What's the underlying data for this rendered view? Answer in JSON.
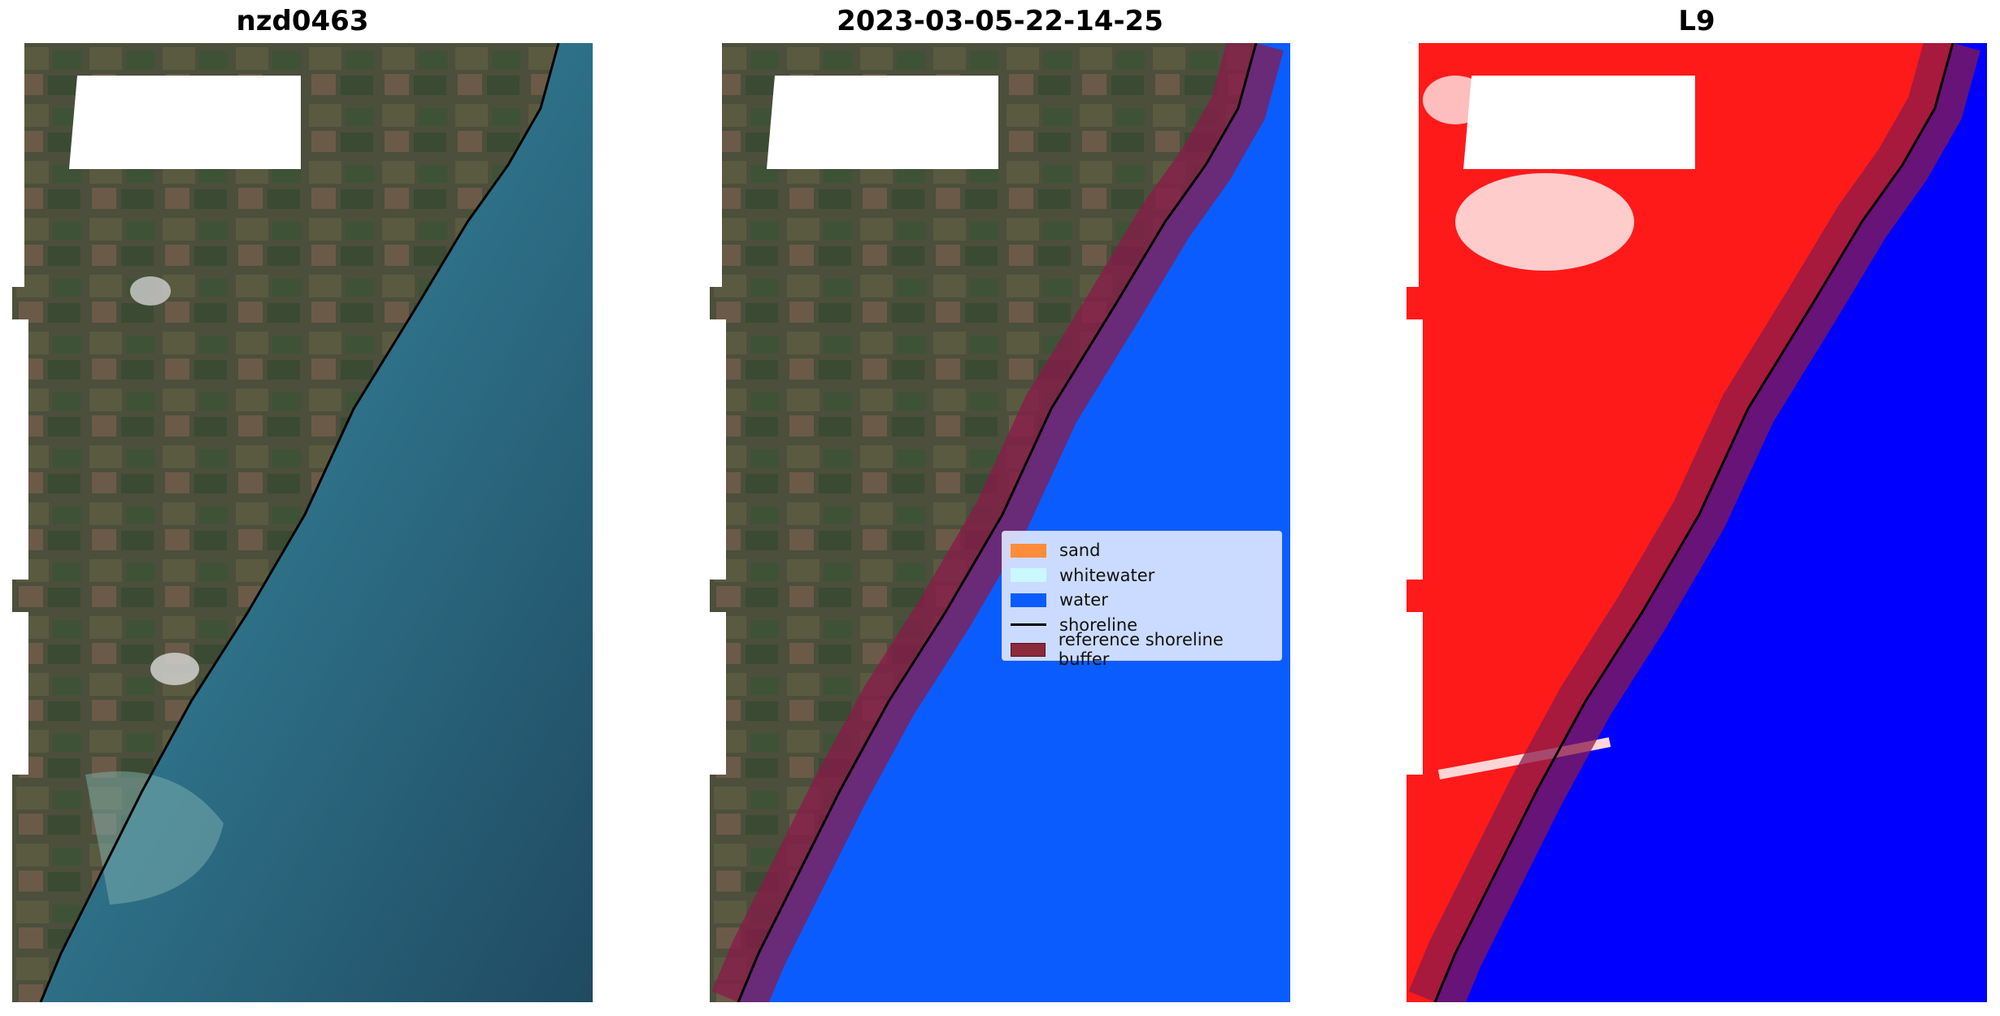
{
  "panels": [
    {
      "title": "nzd0463"
    },
    {
      "title": "2023-03-05-22-14-25"
    },
    {
      "title": "L9"
    }
  ],
  "legend": {
    "items": [
      {
        "label": "sand",
        "color": "#ff8c3a",
        "kind": "patch"
      },
      {
        "label": "whitewater",
        "color": "#c9f8ff",
        "kind": "patch"
      },
      {
        "label": "water",
        "color": "#0b5cff",
        "kind": "patch"
      },
      {
        "label": "shoreline",
        "color": "#000000",
        "kind": "line"
      },
      {
        "label": "reference shoreline buffer",
        "color": "#8b2a3a",
        "kind": "patch"
      }
    ]
  },
  "colors": {
    "land_rgb": "#4a4f3a",
    "ocean_rgb": "#2d6f86",
    "water_class": "#0b5cff",
    "buffer": "#8a1a4a",
    "land_index": "#ff1a1a",
    "water_index": "#0000ff"
  }
}
